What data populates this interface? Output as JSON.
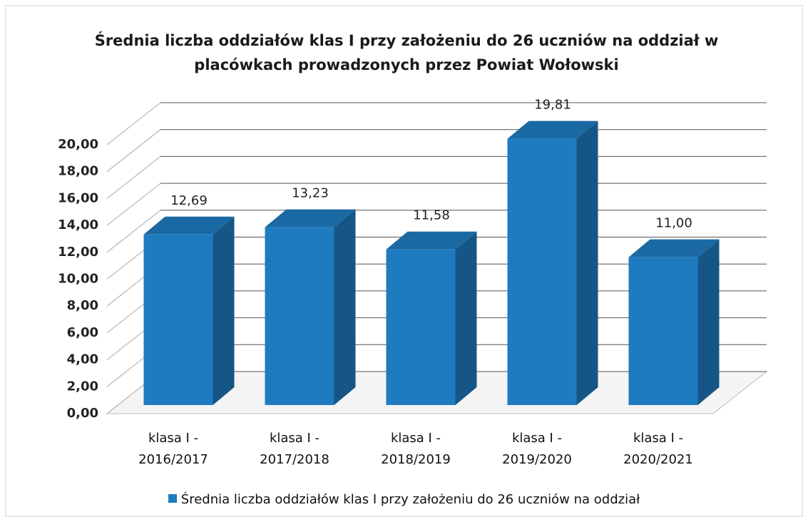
{
  "chart_data": {
    "type": "bar3d",
    "title": "Średnia liczba oddziałów klas I przy założeniu do 26 uczniów na oddział w placówkach prowadzonych  przez Powiat Wołowski",
    "categories": [
      "klasa I - 2016/2017",
      "klasa I - 2017/2018",
      "klasa I - 2018/2019",
      "klasa I - 2019/2020",
      "klasa I - 2020/2021"
    ],
    "series": [
      {
        "name": "Średnia liczba oddziałów klas I przy założeniu do 26 uczniów na oddział",
        "color": "#1f7bc0",
        "values": [
          12.69,
          13.23,
          11.58,
          19.81,
          11.0
        ],
        "value_labels": [
          "12,69",
          "13,23",
          "11,58",
          "19,81",
          "11,00"
        ]
      }
    ],
    "ylim": [
      0,
      20
    ],
    "yticks": [
      {
        "value": 0,
        "label": "0,00"
      },
      {
        "value": 2,
        "label": "2,00"
      },
      {
        "value": 4,
        "label": "4,00"
      },
      {
        "value": 6,
        "label": "6,00"
      },
      {
        "value": 8,
        "label": "8,00"
      },
      {
        "value": 10,
        "label": "10,00"
      },
      {
        "value": 12,
        "label": "12,00"
      },
      {
        "value": 14,
        "label": "14,00"
      },
      {
        "value": 16,
        "label": "16,00"
      },
      {
        "value": 18,
        "label": "18,00"
      },
      {
        "value": 20,
        "label": "20,00"
      }
    ],
    "grid": true,
    "legend": "bottom"
  }
}
